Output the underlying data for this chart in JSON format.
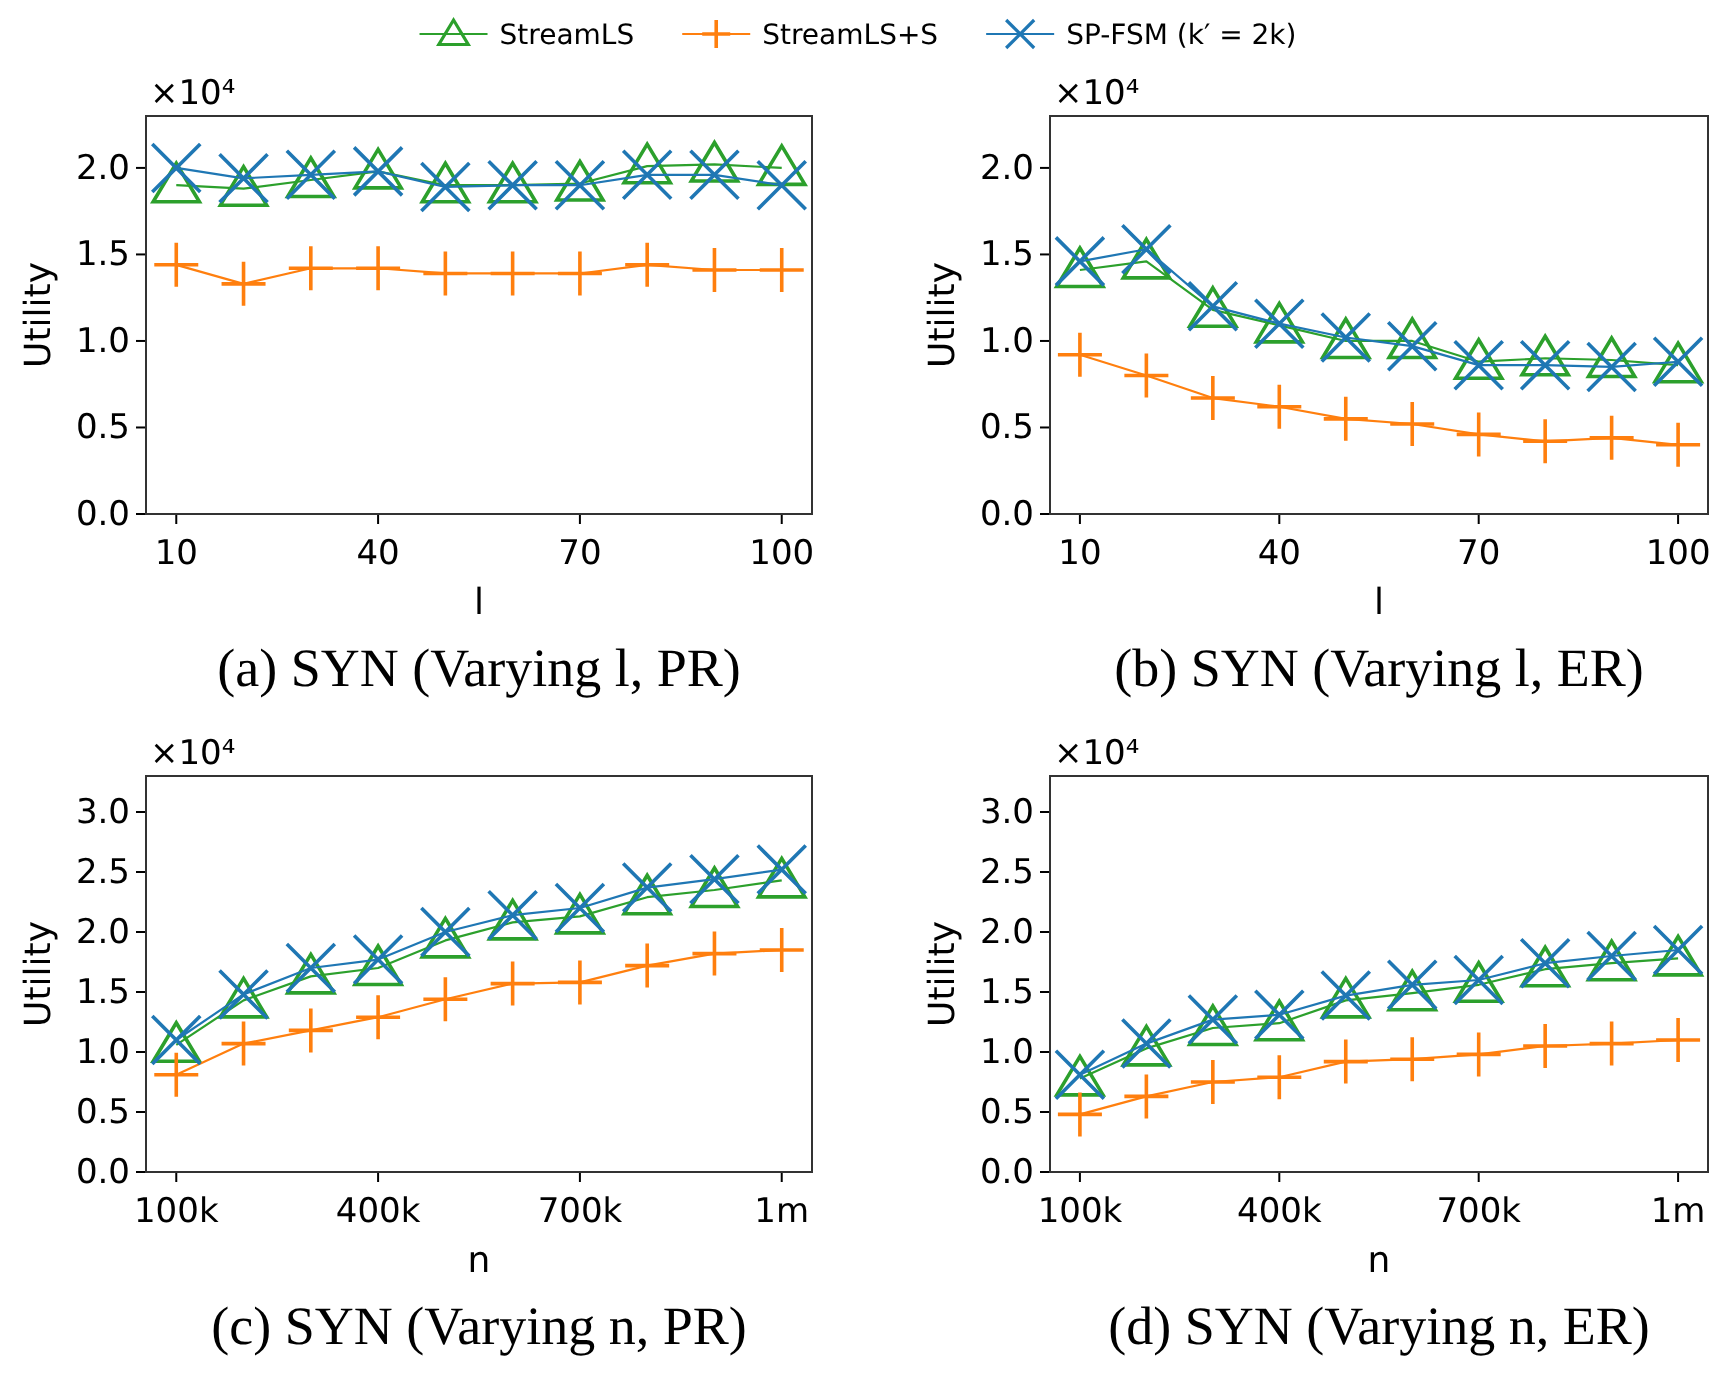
{
  "chart_data": [
    {
      "type": "line",
      "title": "(a) SYN (Varying l, PR)",
      "xlabel": "l",
      "ylabel": "Utility",
      "legend": "top",
      "annotations": [
        "×10⁴"
      ],
      "x": [
        10,
        20,
        30,
        40,
        50,
        60,
        70,
        80,
        90,
        100
      ],
      "xlim": [
        5.5,
        104.5
      ],
      "xticks": [
        10,
        40,
        70,
        100
      ],
      "ylim": [
        0,
        2.3
      ],
      "yticks": [
        {
          "value": 0,
          "label": "0.0"
        },
        0.5,
        {
          "value": 1,
          "label": "1.0"
        },
        1.5,
        {
          "value": 2,
          "label": "2.0"
        }
      ],
      "series": [
        {
          "name": "StreamLS",
          "color": "#2ca02c",
          "marker": "triangle",
          "values": [
            1.9,
            1.88,
            1.93,
            1.98,
            1.9,
            1.9,
            1.91,
            2.01,
            2.02,
            2.0
          ]
        },
        {
          "name": "StreamLS+S",
          "color": "#ff7f0e",
          "marker": "cross",
          "values": [
            1.44,
            1.33,
            1.42,
            1.42,
            1.39,
            1.39,
            1.39,
            1.44,
            1.41,
            1.41
          ]
        },
        {
          "name": "SP-FSM (k′ = 2k)",
          "color": "#1f77b4",
          "marker": "x",
          "values": [
            2.0,
            1.94,
            1.96,
            1.98,
            1.89,
            1.9,
            1.9,
            1.96,
            1.96,
            1.9
          ]
        }
      ]
    },
    {
      "type": "line",
      "title": "(b) SYN (Varying l, ER)",
      "xlabel": "l",
      "ylabel": "Utility",
      "annotations": [
        "×10⁴"
      ],
      "x": [
        10,
        20,
        30,
        40,
        50,
        60,
        70,
        80,
        90,
        100
      ],
      "xlim": [
        5.5,
        104.5
      ],
      "xticks": [
        10,
        40,
        70,
        100
      ],
      "ylim": [
        0,
        2.3
      ],
      "yticks": [
        {
          "value": 0,
          "label": "0.0"
        },
        0.5,
        {
          "value": 1,
          "label": "1.0"
        },
        1.5,
        {
          "value": 2,
          "label": "2.0"
        }
      ],
      "series": [
        {
          "color": "#2ca02c",
          "marker": "triangle",
          "values": [
            1.41,
            1.46,
            1.18,
            1.09,
            1.0,
            1.0,
            0.88,
            0.9,
            0.89,
            0.86
          ]
        },
        {
          "color": "#ff7f0e",
          "marker": "cross",
          "values": [
            0.92,
            0.8,
            0.67,
            0.62,
            0.55,
            0.52,
            0.46,
            0.42,
            0.44,
            0.4
          ]
        },
        {
          "color": "#1f77b4",
          "marker": "x",
          "values": [
            1.46,
            1.53,
            1.2,
            1.1,
            1.02,
            0.97,
            0.86,
            0.86,
            0.85,
            0.88
          ]
        }
      ]
    },
    {
      "type": "line",
      "title": "(c) SYN (Varying n, PR)",
      "xlabel": "n",
      "ylabel": "Utility",
      "annotations": [
        "×10⁴"
      ],
      "x": [
        100000,
        200000,
        300000,
        400000,
        500000,
        600000,
        700000,
        800000,
        900000,
        1000000
      ],
      "xlim": [
        55000,
        1045000
      ],
      "xticks": [
        {
          "value": 100000,
          "label": "100k"
        },
        {
          "value": 400000,
          "label": "400k"
        },
        {
          "value": 700000,
          "label": "700k"
        },
        {
          "value": 1000000,
          "label": "1m"
        }
      ],
      "ylim": [
        0,
        3.3
      ],
      "yticks": [
        {
          "value": 0,
          "label": "0.0"
        },
        0.5,
        {
          "value": 1,
          "label": "1.0"
        },
        1.5,
        {
          "value": 2,
          "label": "2.0"
        },
        2.5,
        {
          "value": 3,
          "label": "3.0"
        }
      ],
      "series": [
        {
          "color": "#2ca02c",
          "marker": "triangle",
          "values": [
            1.06,
            1.43,
            1.63,
            1.7,
            1.93,
            2.08,
            2.13,
            2.29,
            2.35,
            2.43
          ]
        },
        {
          "color": "#ff7f0e",
          "marker": "cross",
          "values": [
            0.81,
            1.07,
            1.18,
            1.29,
            1.44,
            1.57,
            1.58,
            1.72,
            1.82,
            1.85
          ]
        },
        {
          "color": "#1f77b4",
          "marker": "x",
          "values": [
            1.1,
            1.48,
            1.7,
            1.77,
            2.0,
            2.14,
            2.2,
            2.37,
            2.44,
            2.52
          ]
        }
      ]
    },
    {
      "type": "line",
      "title": "(d) SYN (Varying n, ER)",
      "xlabel": "n",
      "ylabel": "Utility",
      "annotations": [
        "×10⁴"
      ],
      "x": [
        100000,
        200000,
        300000,
        400000,
        500000,
        600000,
        700000,
        800000,
        900000,
        1000000
      ],
      "xlim": [
        55000,
        1045000
      ],
      "xticks": [
        {
          "value": 100000,
          "label": "100k"
        },
        {
          "value": 400000,
          "label": "400k"
        },
        {
          "value": 700000,
          "label": "700k"
        },
        {
          "value": 1000000,
          "label": "1m"
        }
      ],
      "ylim": [
        0,
        3.3
      ],
      "yticks": [
        {
          "value": 0,
          "label": "0.0"
        },
        0.5,
        {
          "value": 1,
          "label": "1.0"
        },
        1.5,
        {
          "value": 2,
          "label": "2.0"
        },
        2.5,
        {
          "value": 3,
          "label": "3.0"
        }
      ],
      "series": [
        {
          "color": "#2ca02c",
          "marker": "triangle",
          "values": [
            0.78,
            1.03,
            1.2,
            1.24,
            1.43,
            1.49,
            1.56,
            1.69,
            1.74,
            1.78
          ]
        },
        {
          "color": "#ff7f0e",
          "marker": "cross",
          "values": [
            0.48,
            0.63,
            0.75,
            0.79,
            0.92,
            0.94,
            0.98,
            1.05,
            1.07,
            1.1
          ]
        },
        {
          "color": "#1f77b4",
          "marker": "x",
          "values": [
            0.81,
            1.07,
            1.27,
            1.31,
            1.47,
            1.56,
            1.6,
            1.74,
            1.8,
            1.85
          ]
        }
      ]
    }
  ]
}
